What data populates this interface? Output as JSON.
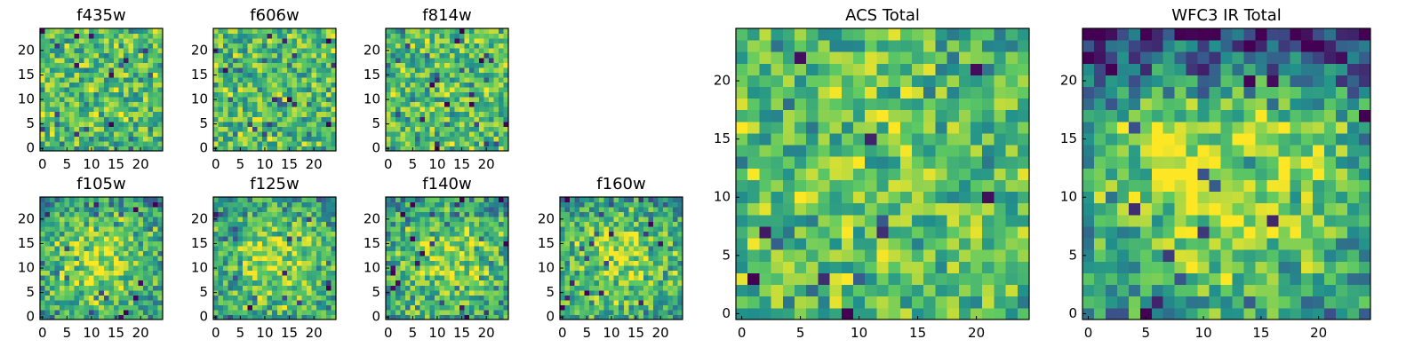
{
  "figure": {
    "colormap": "viridis",
    "colormap_stops": [
      "#440154",
      "#3b528b",
      "#21918c",
      "#5ec962",
      "#fde725"
    ]
  },
  "chart_data": [
    {
      "type": "heatmap",
      "title": "f435w",
      "grid": [
        25,
        25
      ],
      "origin": "lower",
      "xticks": [
        0,
        5,
        10,
        15,
        20
      ],
      "yticks": [
        0,
        5,
        10,
        15,
        20
      ],
      "xlim": [
        0,
        24
      ],
      "ylim": [
        0,
        24
      ],
      "pattern": "uniform noise",
      "seed": 11,
      "center_boost": 0.0,
      "top_dark": 0.0
    },
    {
      "type": "heatmap",
      "title": "f606w",
      "grid": [
        25,
        25
      ],
      "origin": "lower",
      "xticks": [
        0,
        5,
        10,
        15,
        20
      ],
      "yticks": [
        0,
        5,
        10,
        15,
        20
      ],
      "xlim": [
        0,
        24
      ],
      "ylim": [
        0,
        24
      ],
      "pattern": "uniform noise",
      "seed": 23,
      "center_boost": 0.0,
      "top_dark": 0.0
    },
    {
      "type": "heatmap",
      "title": "f814w",
      "grid": [
        25,
        25
      ],
      "origin": "lower",
      "xticks": [
        0,
        5,
        10,
        15,
        20
      ],
      "yticks": [
        0,
        5,
        10,
        15,
        20
      ],
      "xlim": [
        0,
        24
      ],
      "ylim": [
        0,
        24
      ],
      "pattern": "uniform noise",
      "seed": 37,
      "center_boost": 0.0,
      "top_dark": 0.0
    },
    {
      "type": "heatmap",
      "title": "f105w",
      "grid": [
        25,
        25
      ],
      "origin": "lower",
      "xticks": [
        0,
        5,
        10,
        15,
        20
      ],
      "yticks": [
        0,
        5,
        10,
        15,
        20
      ],
      "xlim": [
        0,
        24
      ],
      "ylim": [
        0,
        24
      ],
      "pattern": "central bright blob",
      "seed": 41,
      "center_boost": 0.35,
      "top_dark": 0.1
    },
    {
      "type": "heatmap",
      "title": "f125w",
      "grid": [
        25,
        25
      ],
      "origin": "lower",
      "xticks": [
        0,
        5,
        10,
        15,
        20
      ],
      "yticks": [
        0,
        5,
        10,
        15,
        20
      ],
      "xlim": [
        0,
        24
      ],
      "ylim": [
        0,
        24
      ],
      "pattern": "central bright blob",
      "seed": 53,
      "center_boost": 0.3,
      "top_dark": 0.1
    },
    {
      "type": "heatmap",
      "title": "f140w",
      "grid": [
        25,
        25
      ],
      "origin": "lower",
      "xticks": [
        0,
        5,
        10,
        15,
        20
      ],
      "yticks": [
        0,
        5,
        10,
        15,
        20
      ],
      "xlim": [
        0,
        24
      ],
      "ylim": [
        0,
        24
      ],
      "pattern": "central bright blob",
      "seed": 67,
      "center_boost": 0.3,
      "top_dark": 0.1
    },
    {
      "type": "heatmap",
      "title": "f160w",
      "grid": [
        25,
        25
      ],
      "origin": "lower",
      "xticks": [
        0,
        5,
        10,
        15,
        20
      ],
      "yticks": [
        0,
        5,
        10,
        15,
        20
      ],
      "xlim": [
        0,
        24
      ],
      "ylim": [
        0,
        24
      ],
      "pattern": "central bright blob",
      "seed": 79,
      "center_boost": 0.3,
      "top_dark": 0.1
    },
    {
      "type": "heatmap",
      "title": "ACS Total",
      "grid": [
        25,
        25
      ],
      "origin": "lower",
      "xticks": [
        0,
        5,
        10,
        15,
        20
      ],
      "yticks": [
        0,
        5,
        10,
        15,
        20
      ],
      "xlim": [
        0,
        24
      ],
      "ylim": [
        0,
        24
      ],
      "pattern": "mostly green/yellow noise with sparse dark pixels",
      "seed": 97,
      "center_boost": 0.05,
      "top_dark": 0.0
    },
    {
      "type": "heatmap",
      "title": "WFC3 IR Total",
      "grid": [
        25,
        25
      ],
      "origin": "lower",
      "xticks": [
        0,
        5,
        10,
        15,
        20
      ],
      "yticks": [
        0,
        5,
        10,
        15,
        20
      ],
      "xlim": [
        0,
        24
      ],
      "ylim": [
        0,
        24
      ],
      "pattern": "smooth bright center, dark blue top band",
      "seed": 113,
      "center_boost": 0.45,
      "top_dark": 0.45
    }
  ]
}
